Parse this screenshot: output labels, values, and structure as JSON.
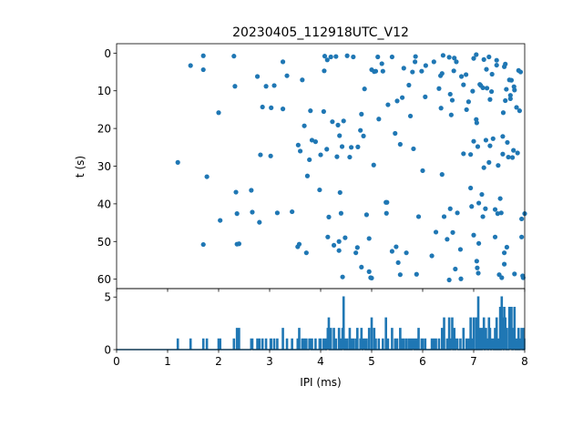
{
  "figure": {
    "title": "20230405_112918UTC_V12",
    "accent_color": "#1f77b4"
  },
  "chart_data": [
    {
      "type": "scatter",
      "panel": "top",
      "title": "20230405_112918UTC_V12",
      "xlabel": "",
      "ylabel": "t (s)",
      "xlim": [
        0,
        8
      ],
      "ylim": [
        62.5,
        -2.5
      ],
      "y_inverted": true,
      "x_ticks_labeled": false,
      "y_ticks": [
        0,
        10,
        20,
        30,
        40,
        50,
        60
      ],
      "y_tick_labels": [
        "0",
        "10",
        "20",
        "30",
        "40",
        "50",
        "60"
      ],
      "grid": false,
      "points": [
        [
          1.2,
          29.0
        ],
        [
          1.45,
          3.3
        ],
        [
          1.7,
          0.7
        ],
        [
          1.7,
          4.4
        ],
        [
          1.7,
          50.8
        ],
        [
          1.77,
          32.8
        ],
        [
          2.0,
          15.8
        ],
        [
          2.03,
          44.4
        ],
        [
          2.3,
          0.8
        ],
        [
          2.32,
          8.8
        ],
        [
          2.34,
          36.9
        ],
        [
          2.36,
          42.6
        ],
        [
          2.36,
          50.7
        ],
        [
          2.4,
          50.6
        ],
        [
          2.64,
          36.4
        ],
        [
          2.66,
          42.2
        ],
        [
          2.76,
          6.2
        ],
        [
          2.8,
          44.9
        ],
        [
          2.82,
          27.0
        ],
        [
          2.86,
          14.3
        ],
        [
          2.93,
          8.8
        ],
        [
          3.02,
          27.3
        ],
        [
          3.03,
          14.5
        ],
        [
          3.09,
          8.6
        ],
        [
          3.15,
          42.4
        ],
        [
          3.26,
          2.3
        ],
        [
          3.26,
          14.8
        ],
        [
          3.34,
          6.0
        ],
        [
          3.44,
          42.1
        ],
        [
          3.55,
          51.4
        ],
        [
          3.56,
          24.4
        ],
        [
          3.58,
          50.7
        ],
        [
          3.6,
          26.0
        ],
        [
          3.64,
          7.1
        ],
        [
          3.68,
          19.3
        ],
        [
          3.72,
          53.0
        ],
        [
          3.74,
          32.6
        ],
        [
          3.78,
          28.3
        ],
        [
          3.8,
          15.3
        ],
        [
          3.83,
          23.1
        ],
        [
          3.9,
          23.5
        ],
        [
          3.98,
          36.3
        ],
        [
          4.0,
          27.0
        ],
        [
          4.06,
          15.5
        ],
        [
          4.07,
          4.7
        ],
        [
          4.08,
          0.8
        ],
        [
          4.12,
          25.5
        ],
        [
          4.13,
          1.8
        ],
        [
          4.14,
          48.8
        ],
        [
          4.16,
          43.5
        ],
        [
          4.2,
          1.0
        ],
        [
          4.23,
          18.2
        ],
        [
          4.26,
          51.0
        ],
        [
          4.3,
          0.9
        ],
        [
          4.32,
          27.5
        ],
        [
          4.34,
          19.1
        ],
        [
          4.36,
          52.4
        ],
        [
          4.36,
          50.0
        ],
        [
          4.37,
          21.9
        ],
        [
          4.38,
          37.0
        ],
        [
          4.4,
          42.5
        ],
        [
          4.42,
          24.8
        ],
        [
          4.43,
          59.4
        ],
        [
          4.45,
          18.0
        ],
        [
          4.48,
          49.0
        ],
        [
          4.52,
          0.7
        ],
        [
          4.57,
          27.6
        ],
        [
          4.6,
          25.0
        ],
        [
          4.64,
          1.0
        ],
        [
          4.69,
          53.0
        ],
        [
          4.72,
          51.6
        ],
        [
          4.73,
          24.9
        ],
        [
          4.78,
          20.5
        ],
        [
          4.8,
          56.8
        ],
        [
          4.8,
          16.2
        ],
        [
          4.84,
          22.0
        ],
        [
          4.86,
          9.5
        ],
        [
          4.9,
          42.9
        ],
        [
          4.95,
          58.0
        ],
        [
          4.95,
          49.2
        ],
        [
          4.98,
          59.6
        ],
        [
          5.0,
          59.7
        ],
        [
          5.0,
          4.4
        ],
        [
          5.04,
          29.7
        ],
        [
          5.05,
          4.9
        ],
        [
          5.08,
          4.8
        ],
        [
          5.12,
          1.0
        ],
        [
          5.14,
          17.5
        ],
        [
          5.2,
          2.8
        ],
        [
          5.22,
          4.8
        ],
        [
          5.28,
          39.6
        ],
        [
          5.29,
          42.5
        ],
        [
          5.3,
          39.6
        ],
        [
          5.32,
          13.7
        ],
        [
          5.4,
          1.0
        ],
        [
          5.4,
          52.6
        ],
        [
          5.46,
          21.3
        ],
        [
          5.48,
          51.4
        ],
        [
          5.5,
          12.7
        ],
        [
          5.52,
          55.6
        ],
        [
          5.56,
          58.8
        ],
        [
          5.56,
          24.2
        ],
        [
          5.6,
          11.8
        ],
        [
          5.63,
          4.0
        ],
        [
          5.68,
          53.0
        ],
        [
          5.73,
          8.5
        ],
        [
          5.76,
          16.7
        ],
        [
          5.8,
          5.0
        ],
        [
          5.82,
          25.4
        ],
        [
          5.85,
          2.3
        ],
        [
          5.86,
          0.9
        ],
        [
          5.88,
          58.7
        ],
        [
          5.92,
          43.4
        ],
        [
          5.98,
          4.8
        ],
        [
          6.0,
          31.2
        ],
        [
          6.05,
          11.6
        ],
        [
          6.06,
          3.3
        ],
        [
          6.18,
          53.8
        ],
        [
          6.22,
          2.3
        ],
        [
          6.26,
          47.5
        ],
        [
          6.32,
          9.4
        ],
        [
          6.35,
          6.0
        ],
        [
          6.36,
          14.6
        ],
        [
          6.38,
          5.4
        ],
        [
          6.38,
          32.2
        ],
        [
          6.4,
          0.6
        ],
        [
          6.42,
          43.4
        ],
        [
          6.48,
          49.4
        ],
        [
          6.52,
          1.1
        ],
        [
          6.52,
          60.2
        ],
        [
          6.54,
          41.3
        ],
        [
          6.54,
          10.9
        ],
        [
          6.56,
          16.4
        ],
        [
          6.58,
          12.5
        ],
        [
          6.59,
          47.6
        ],
        [
          6.61,
          4.7
        ],
        [
          6.62,
          1.3
        ],
        [
          6.64,
          57.3
        ],
        [
          6.66,
          2.3
        ],
        [
          6.68,
          42.4
        ],
        [
          6.74,
          52.1
        ],
        [
          6.75,
          59.9
        ],
        [
          6.76,
          6.2
        ],
        [
          6.8,
          26.7
        ],
        [
          6.8,
          8.4
        ],
        [
          6.85,
          5.7
        ],
        [
          6.86,
          15.0
        ],
        [
          6.9,
          12.9
        ],
        [
          6.94,
          35.8
        ],
        [
          6.94,
          26.9
        ],
        [
          6.96,
          40.7
        ],
        [
          6.98,
          10.1
        ],
        [
          7.0,
          1.4
        ],
        [
          7.0,
          48.3
        ],
        [
          7.0,
          23.4
        ],
        [
          7.05,
          0.4
        ],
        [
          7.05,
          17.6
        ],
        [
          7.06,
          55.2
        ],
        [
          7.06,
          18.5
        ],
        [
          7.07,
          57.0
        ],
        [
          7.08,
          24.8
        ],
        [
          7.09,
          58.4
        ],
        [
          7.1,
          50.5
        ],
        [
          7.1,
          39.8
        ],
        [
          7.12,
          8.3
        ],
        [
          7.14,
          8.6
        ],
        [
          7.16,
          37.5
        ],
        [
          7.18,
          43.4
        ],
        [
          7.18,
          9.2
        ],
        [
          7.2,
          1.7
        ],
        [
          7.2,
          30.4
        ],
        [
          7.23,
          41.3
        ],
        [
          7.24,
          23.1
        ],
        [
          7.25,
          4.3
        ],
        [
          7.26,
          9.3
        ],
        [
          7.3,
          29.0
        ],
        [
          7.3,
          1.0
        ],
        [
          7.32,
          12.3
        ],
        [
          7.32,
          24.6
        ],
        [
          7.35,
          10.2
        ],
        [
          7.36,
          5.6
        ],
        [
          7.38,
          22.7
        ],
        [
          7.42,
          41.5
        ],
        [
          7.42,
          48.8
        ],
        [
          7.45,
          3.2
        ],
        [
          7.45,
          1.9
        ],
        [
          7.47,
          42.6
        ],
        [
          7.48,
          29.8
        ],
        [
          7.5,
          58.8
        ],
        [
          7.52,
          38.6
        ],
        [
          7.54,
          42.4
        ],
        [
          7.55,
          59.6
        ],
        [
          7.57,
          22.1
        ],
        [
          7.57,
          26.8
        ],
        [
          7.58,
          15.8
        ],
        [
          7.6,
          56.0
        ],
        [
          7.6,
          53.0
        ],
        [
          7.6,
          3.6
        ],
        [
          7.62,
          12.6
        ],
        [
          7.62,
          2.9
        ],
        [
          7.64,
          9.6
        ],
        [
          7.65,
          51.5
        ],
        [
          7.66,
          23.7
        ],
        [
          7.68,
          27.6
        ],
        [
          7.7,
          7.1
        ],
        [
          7.72,
          11.2
        ],
        [
          7.72,
          12.1
        ],
        [
          7.74,
          7.2
        ],
        [
          7.76,
          27.7
        ],
        [
          7.78,
          25.8
        ],
        [
          7.79,
          8.9
        ],
        [
          7.8,
          58.6
        ],
        [
          7.8,
          9.8
        ],
        [
          7.84,
          14.4
        ],
        [
          7.86,
          26.5
        ],
        [
          7.88,
          4.6
        ],
        [
          7.9,
          15.3
        ],
        [
          7.92,
          5.0
        ],
        [
          7.94,
          48.8
        ],
        [
          7.94,
          44.0
        ],
        [
          7.96,
          59.1
        ],
        [
          7.97,
          59.6
        ],
        [
          8.0,
          42.6
        ]
      ]
    },
    {
      "type": "line",
      "panel": "bottom",
      "xlabel": "IPI (ms)",
      "ylabel": "",
      "xlim": [
        0,
        8
      ],
      "ylim": [
        0,
        5.8
      ],
      "x_ticks": [
        0,
        1,
        2,
        3,
        4,
        5,
        6,
        7,
        8
      ],
      "x_tick_labels": [
        "0",
        "1",
        "2",
        "3",
        "4",
        "5",
        "6",
        "7",
        "8"
      ],
      "y_ticks": [
        0,
        5
      ],
      "y_tick_labels": [
        "0",
        "5"
      ],
      "grid": false,
      "bin_width": 0.02,
      "peaks": [
        [
          1.2,
          1
        ],
        [
          1.45,
          1
        ],
        [
          1.7,
          1
        ],
        [
          1.77,
          1
        ],
        [
          2.0,
          1
        ],
        [
          2.03,
          1
        ],
        [
          2.3,
          1
        ],
        [
          2.36,
          2
        ],
        [
          2.4,
          2
        ],
        [
          2.64,
          1
        ],
        [
          2.66,
          1
        ],
        [
          2.76,
          1
        ],
        [
          2.8,
          1
        ],
        [
          2.86,
          1
        ],
        [
          2.93,
          1
        ],
        [
          3.02,
          1
        ],
        [
          3.03,
          1
        ],
        [
          3.09,
          1
        ],
        [
          3.15,
          1
        ],
        [
          3.26,
          2
        ],
        [
          3.34,
          1
        ],
        [
          3.44,
          1
        ],
        [
          3.55,
          1
        ],
        [
          3.58,
          2
        ],
        [
          3.64,
          1
        ],
        [
          3.68,
          1
        ],
        [
          3.72,
          1
        ],
        [
          3.78,
          1
        ],
        [
          3.8,
          1
        ],
        [
          3.83,
          1
        ],
        [
          3.9,
          1
        ],
        [
          3.98,
          1
        ],
        [
          4.0,
          1
        ],
        [
          4.06,
          1
        ],
        [
          4.08,
          1
        ],
        [
          4.12,
          1
        ],
        [
          4.14,
          2
        ],
        [
          4.16,
          3
        ],
        [
          4.2,
          2
        ],
        [
          4.26,
          2
        ],
        [
          4.3,
          1
        ],
        [
          4.36,
          2
        ],
        [
          4.4,
          1
        ],
        [
          4.43,
          2
        ],
        [
          4.45,
          5
        ],
        [
          4.48,
          1
        ],
        [
          4.52,
          1
        ],
        [
          4.57,
          2
        ],
        [
          4.6,
          1
        ],
        [
          4.64,
          1
        ],
        [
          4.69,
          1
        ],
        [
          4.72,
          2
        ],
        [
          4.78,
          1
        ],
        [
          4.8,
          2
        ],
        [
          4.84,
          1
        ],
        [
          4.86,
          1
        ],
        [
          4.9,
          1
        ],
        [
          4.95,
          2
        ],
        [
          5.0,
          3
        ],
        [
          5.05,
          2
        ],
        [
          5.08,
          1
        ],
        [
          5.14,
          1
        ],
        [
          5.22,
          1
        ],
        [
          5.28,
          3
        ],
        [
          5.32,
          1
        ],
        [
          5.4,
          2
        ],
        [
          5.46,
          1
        ],
        [
          5.5,
          1
        ],
        [
          5.56,
          2
        ],
        [
          5.6,
          1
        ],
        [
          5.63,
          1
        ],
        [
          5.68,
          1
        ],
        [
          5.73,
          1
        ],
        [
          5.76,
          1
        ],
        [
          5.8,
          1
        ],
        [
          5.82,
          1
        ],
        [
          5.85,
          1
        ],
        [
          5.88,
          1
        ],
        [
          5.92,
          2
        ],
        [
          5.98,
          1
        ],
        [
          6.0,
          1
        ],
        [
          6.05,
          1
        ],
        [
          6.18,
          1
        ],
        [
          6.22,
          1
        ],
        [
          6.26,
          1
        ],
        [
          6.32,
          1
        ],
        [
          6.38,
          2
        ],
        [
          6.42,
          3
        ],
        [
          6.48,
          1
        ],
        [
          6.52,
          3
        ],
        [
          6.56,
          1
        ],
        [
          6.58,
          3
        ],
        [
          6.62,
          2
        ],
        [
          6.66,
          1
        ],
        [
          6.68,
          1
        ],
        [
          6.74,
          1
        ],
        [
          6.8,
          2
        ],
        [
          6.86,
          1
        ],
        [
          6.9,
          1
        ],
        [
          6.94,
          3
        ],
        [
          6.98,
          1
        ],
        [
          7.0,
          3
        ],
        [
          7.05,
          3
        ],
        [
          7.06,
          3
        ],
        [
          7.09,
          5
        ],
        [
          7.1,
          2
        ],
        [
          7.14,
          2
        ],
        [
          7.18,
          2
        ],
        [
          7.2,
          3
        ],
        [
          7.24,
          2
        ],
        [
          7.26,
          1
        ],
        [
          7.3,
          3
        ],
        [
          7.32,
          2
        ],
        [
          7.36,
          1
        ],
        [
          7.38,
          1
        ],
        [
          7.42,
          2
        ],
        [
          7.45,
          3
        ],
        [
          7.48,
          1
        ],
        [
          7.52,
          4
        ],
        [
          7.55,
          5
        ],
        [
          7.57,
          3
        ],
        [
          7.6,
          4
        ],
        [
          7.62,
          3
        ],
        [
          7.65,
          2
        ],
        [
          7.7,
          4
        ],
        [
          7.72,
          1
        ],
        [
          7.74,
          4
        ],
        [
          7.78,
          2
        ],
        [
          7.8,
          4
        ],
        [
          7.84,
          1
        ],
        [
          7.88,
          2
        ],
        [
          7.92,
          1
        ],
        [
          7.94,
          2
        ],
        [
          7.97,
          2
        ],
        [
          8.0,
          1
        ]
      ]
    }
  ]
}
